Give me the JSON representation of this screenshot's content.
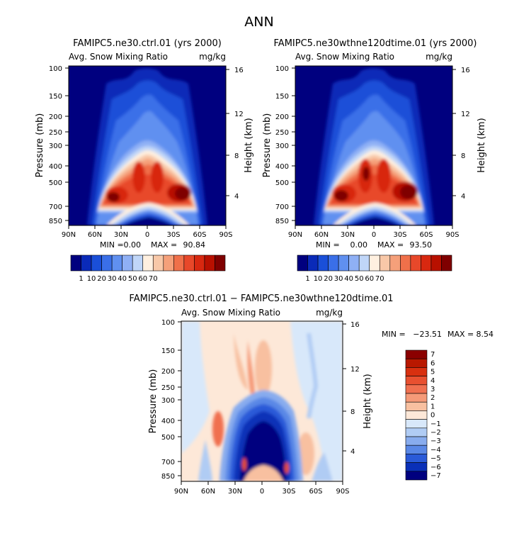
{
  "suptitle": "ANN",
  "chart_data": [
    {
      "type": "heatmap",
      "title": "FAMIPC5.ne30.ctrl.01 (yrs 2000)",
      "subtitle_left": "Avg. Snow Mixing Ratio",
      "subtitle_right": "mg/kg",
      "xlabel": "",
      "ylabel": "Pressure (mb)",
      "ylabel_right": "Height (km)",
      "x_ticks": [
        "90N",
        "60N",
        "30N",
        "0",
        "30S",
        "60S",
        "90S"
      ],
      "y_ticks": [
        "100",
        "150",
        "200",
        "250",
        "300",
        "400",
        "500",
        "700",
        "850"
      ],
      "y_ticks_right": [
        "16",
        "12",
        "8",
        "4"
      ],
      "min_label": "MIN =",
      "min_value": "0.00",
      "max_label": "MAX =",
      "max_value": "90.84",
      "colorbar_labels": [
        "1",
        "10",
        "20",
        "30",
        "40",
        "50",
        "60",
        "70"
      ],
      "colorbar_colors": [
        "#00007f",
        "#0a2ab8",
        "#1a4fd8",
        "#3a6fe8",
        "#6090f0",
        "#8fb0f5",
        "#c0d6f8",
        "#fff0e0",
        "#f8c8a8",
        "#f5a07a",
        "#f0704a",
        "#e8482a",
        "#d82810",
        "#b81000",
        "#7f0000"
      ],
      "xlim": [
        90,
        -90
      ],
      "ylim": [
        100,
        850
      ]
    },
    {
      "type": "heatmap",
      "title": "FAMIPC5.ne30wthne120dtime.01 (yrs 2000)",
      "subtitle_left": "Avg. Snow Mixing Ratio",
      "subtitle_right": "mg/kg",
      "xlabel": "",
      "ylabel": "Pressure (mb)",
      "ylabel_right": "Height (km)",
      "x_ticks": [
        "90N",
        "60N",
        "30N",
        "0",
        "30S",
        "60S",
        "90S"
      ],
      "y_ticks": [
        "100",
        "150",
        "200",
        "250",
        "300",
        "400",
        "500",
        "700",
        "850"
      ],
      "y_ticks_right": [
        "16",
        "12",
        "8",
        "4"
      ],
      "min_label": "MIN =",
      "min_value": "0.00",
      "max_label": "MAX =",
      "max_value": "93.50",
      "colorbar_labels": [
        "1",
        "10",
        "20",
        "30",
        "40",
        "50",
        "60",
        "70"
      ],
      "colorbar_colors": [
        "#00007f",
        "#0a2ab8",
        "#1a4fd8",
        "#3a6fe8",
        "#6090f0",
        "#8fb0f5",
        "#c0d6f8",
        "#fff0e0",
        "#f8c8a8",
        "#f5a07a",
        "#f0704a",
        "#e8482a",
        "#d82810",
        "#b81000",
        "#7f0000"
      ],
      "xlim": [
        90,
        -90
      ],
      "ylim": [
        100,
        850
      ]
    },
    {
      "type": "heatmap",
      "title": "FAMIPC5.ne30.ctrl.01 − FAMIPC5.ne30wthne120dtime.01",
      "subtitle_left": "Avg. Snow Mixing Ratio",
      "subtitle_right": "mg/kg",
      "xlabel": "",
      "ylabel": "Pressure (mb)",
      "ylabel_right": "Height (km)",
      "x_ticks": [
        "90N",
        "60N",
        "30N",
        "0",
        "30S",
        "60S",
        "90S"
      ],
      "y_ticks": [
        "100",
        "150",
        "200",
        "250",
        "300",
        "400",
        "500",
        "700",
        "850"
      ],
      "y_ticks_right": [
        "16",
        "12",
        "8",
        "4"
      ],
      "min_label": "MIN =",
      "min_value": "−23.51",
      "max_label": "MAX =",
      "max_value": "8.54",
      "colorbar_labels": [
        "7",
        "6",
        "5",
        "4",
        "3",
        "2",
        "1",
        "0",
        "−1",
        "−2",
        "−3",
        "−4",
        "−5",
        "−6",
        "−7"
      ],
      "colorbar_colors": [
        "#8b0000",
        "#b81800",
        "#d83010",
        "#e85030",
        "#f07050",
        "#f59a78",
        "#f8c0a0",
        "#fde8d8",
        "#d8e8fa",
        "#b0ccf4",
        "#88acee",
        "#5a88e6",
        "#2a5ad8",
        "#0a30b8",
        "#00007f"
      ],
      "xlim": [
        90,
        -90
      ],
      "ylim": [
        100,
        850
      ]
    }
  ]
}
